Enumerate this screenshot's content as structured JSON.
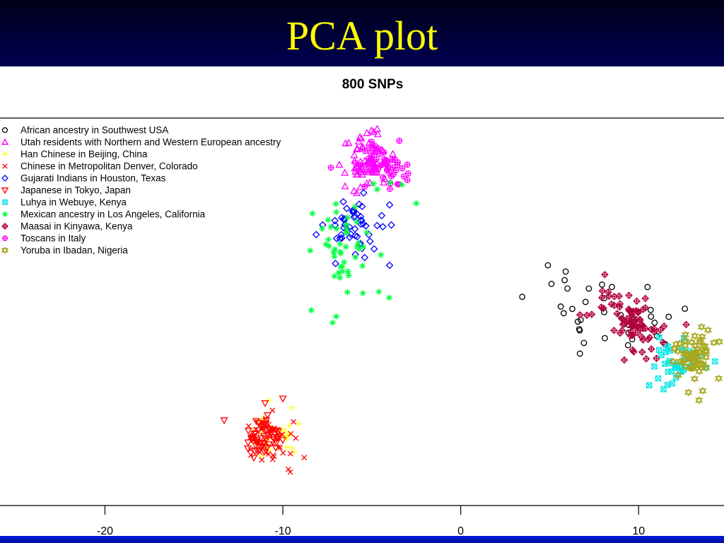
{
  "slide": {
    "title": "PCA plot"
  },
  "chart_data": {
    "type": "scatter",
    "title": "800 SNPs",
    "xlabel": "",
    "ylabel": "",
    "xlim": [
      -25.9,
      14.8
    ],
    "ylim": [
      -3.0,
      22.0
    ],
    "xticks": [
      -20,
      -10,
      0,
      10
    ],
    "xtick_labels": [
      "-20",
      "-10",
      "0",
      "10"
    ],
    "grid": false,
    "legend_position": "top-left",
    "series": [
      {
        "name": "African ancestry in Southwest USA",
        "color": "#000000",
        "marker": "circle",
        "cx": 8.5,
        "cy": 9.2,
        "sx": 2.0,
        "sy": 1.4,
        "n": 26,
        "seed": 11,
        "points": [
          [
            4.9,
            12.5
          ],
          [
            5.9,
            12.1
          ],
          [
            5.1,
            11.3
          ],
          [
            6.0,
            11.0
          ],
          [
            7.2,
            11.0
          ],
          [
            6.7,
            6.8
          ],
          [
            8.5,
            11.1
          ],
          [
            10.5,
            11.1
          ],
          [
            12.6,
            9.7
          ],
          [
            8.1,
            7.8
          ]
        ]
      },
      {
        "name": "Utah residents with Northern and Western European ancestry",
        "color": "#ff00ff",
        "marker": "triangle-up",
        "cx": -5.2,
        "cy": 19.2,
        "sx": 0.6,
        "sy": 0.8,
        "n": 45,
        "seed": 23,
        "points": [
          [
            -4.7,
            21.3
          ],
          [
            -4.9,
            21.1
          ],
          [
            -6.3,
            20.4
          ],
          [
            -6.5,
            17.6
          ],
          [
            -6.0,
            17.3
          ]
        ]
      },
      {
        "name": "Han Chinese in Beijing, China",
        "color": "#ffff00",
        "marker": "plus",
        "cx": -10.4,
        "cy": 1.5,
        "sx": 0.6,
        "sy": 0.6,
        "n": 28,
        "seed": 37,
        "points": [
          [
            -10.8,
            3.8
          ],
          [
            -9.5,
            3.3
          ],
          [
            -11.2,
            0.2
          ]
        ]
      },
      {
        "name": "Chinese in Metropolitan Denver, Colorado",
        "color": "#ff0000",
        "marker": "x",
        "cx": -10.6,
        "cy": 1.2,
        "sx": 0.8,
        "sy": 0.8,
        "n": 45,
        "seed": 41,
        "points": [
          [
            -8.8,
            0.1
          ],
          [
            -9.4,
            2.4
          ]
        ]
      },
      {
        "name": "Gujarati Indians in Houston, Texas",
        "color": "#0000ff",
        "marker": "diamond",
        "cx": -6.0,
        "cy": 15.0,
        "sx": 0.8,
        "sy": 1.0,
        "n": 50,
        "seed": 53,
        "points": [
          [
            -4.0,
            12.5
          ],
          [
            -4.0,
            16.4
          ],
          [
            -3.9,
            15.1
          ],
          [
            -6.6,
            16.6
          ]
        ]
      },
      {
        "name": "Japanese in Tokyo, Japan",
        "color": "#ff0000",
        "marker": "triangle-down",
        "cx": -11.1,
        "cy": 1.3,
        "sx": 0.5,
        "sy": 0.6,
        "n": 55,
        "seed": 67,
        "points": [
          [
            -13.3,
            2.5
          ],
          [
            -10.0,
            3.9
          ],
          [
            -11.0,
            3.6
          ]
        ]
      },
      {
        "name": "Luhya in Webuye, Kenya",
        "color": "#00e5e5",
        "marker": "square-x",
        "cx": 12.3,
        "cy": 6.2,
        "sx": 0.8,
        "sy": 0.7,
        "n": 40,
        "seed": 71,
        "points": [
          [
            11.4,
            4.5
          ],
          [
            11.1,
            5.2
          ],
          [
            14.3,
            6.3
          ]
        ]
      },
      {
        "name": "Mexican ancestry in Los Angeles, California",
        "color": "#00ff40",
        "marker": "star",
        "cx": -6.4,
        "cy": 13.8,
        "sx": 1.0,
        "sy": 1.6,
        "n": 45,
        "seed": 83,
        "points": [
          [
            -8.4,
            9.6
          ],
          [
            -7.0,
            9.2
          ],
          [
            -7.2,
            8.8
          ],
          [
            -3.3,
            17.7
          ],
          [
            -2.5,
            16.5
          ],
          [
            -4.7,
            17.4
          ],
          [
            -4.6,
            10.8
          ],
          [
            -5.5,
            10.7
          ],
          [
            -7.1,
            11.8
          ]
        ]
      },
      {
        "name": "Maasai in Kinyawa, Kenya",
        "color": "#b0003a",
        "marker": "diamond-plus",
        "cx": 9.3,
        "cy": 9.0,
        "sx": 1.1,
        "sy": 0.9,
        "n": 80,
        "seed": 97,
        "points": [
          [
            6.7,
            9.3
          ],
          [
            8.1,
            11.9
          ],
          [
            10.2,
            6.9
          ]
        ]
      },
      {
        "name": "Toscans in Italy",
        "color": "#ff00ff",
        "marker": "circle-plus",
        "cx": -4.6,
        "cy": 19.1,
        "sx": 0.7,
        "sy": 0.7,
        "n": 65,
        "seed": 101,
        "points": [
          [
            -7.3,
            18.8
          ],
          [
            -3.0,
            19.0
          ],
          [
            -3.0,
            18.0
          ]
        ]
      },
      {
        "name": "Yoruba in Ibadan, Nigeria",
        "color": "#a8a820",
        "marker": "star-of-david",
        "cx": 13.1,
        "cy": 6.6,
        "sx": 0.5,
        "sy": 0.8,
        "n": 60,
        "seed": 113,
        "points": [
          [
            12.8,
            4.3
          ],
          [
            13.6,
            4.4
          ],
          [
            14.5,
            5.2
          ]
        ]
      }
    ]
  }
}
